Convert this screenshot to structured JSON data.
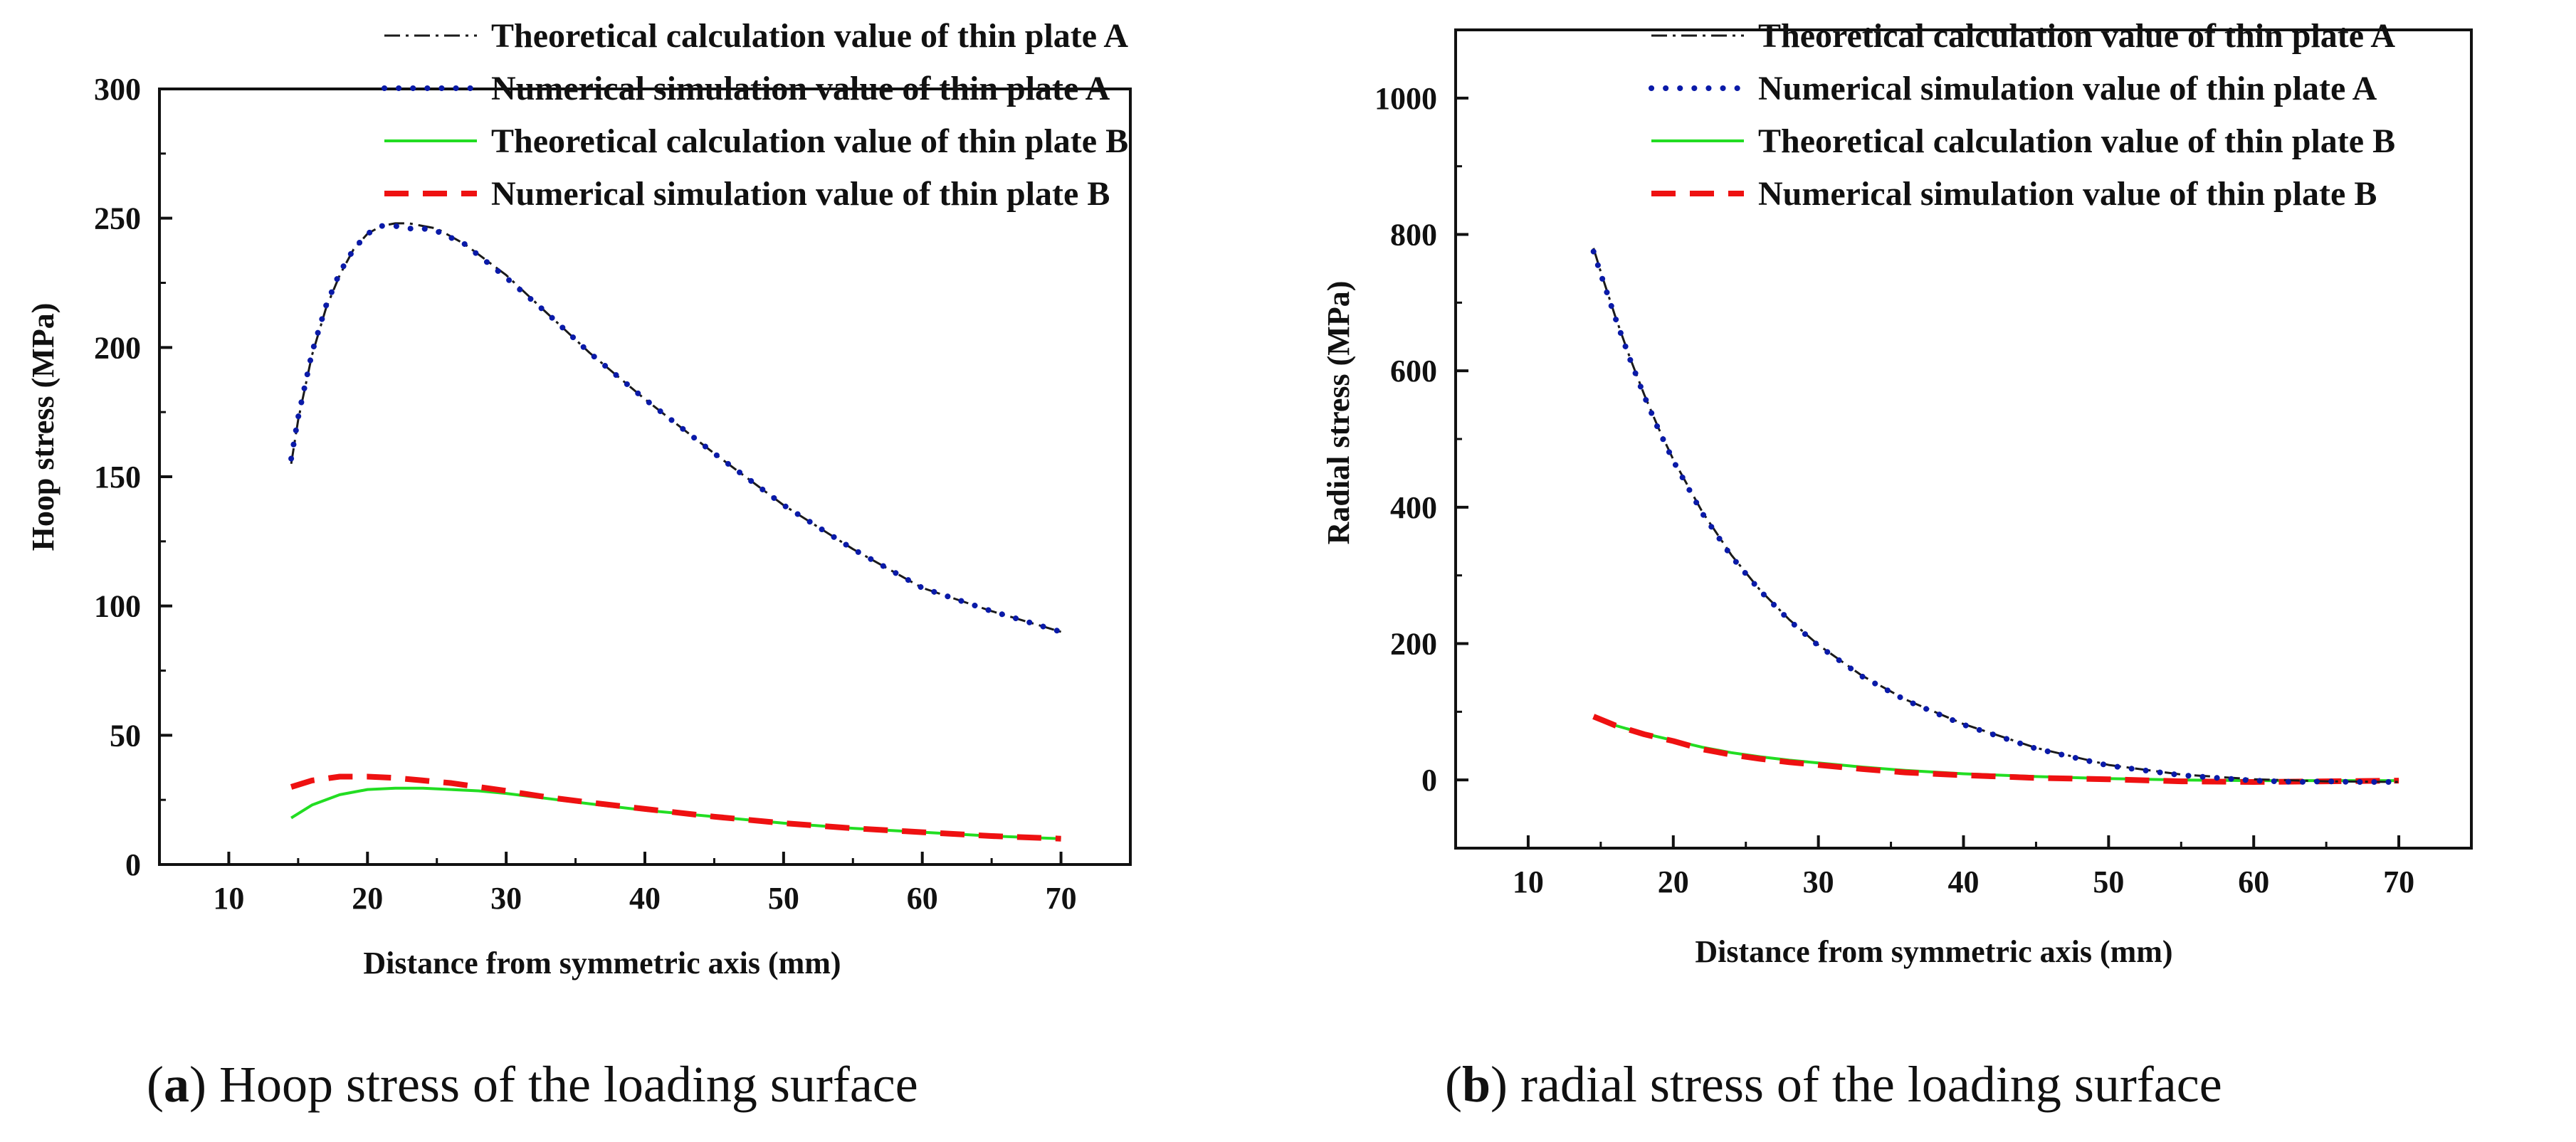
{
  "legend": [
    {
      "label": "Theoretical calculation value of thin plate A",
      "color": "#1a1a1a",
      "style": "dashdot"
    },
    {
      "label": "Numerical simulation value of thin plate A",
      "color": "#0a1aa8",
      "style": "dot"
    },
    {
      "label": "Theoretical calculation value of thin plate B",
      "color": "#22dd22",
      "style": "solid"
    },
    {
      "label": "Numerical simulation value of thin plate B",
      "color": "#ee1111",
      "style": "dash"
    }
  ],
  "captions": [
    {
      "letter": "a",
      "text": " Hoop stress of the loading surface"
    },
    {
      "letter": "b",
      "text": " radial stress of the loading surface"
    }
  ],
  "chart_data": [
    {
      "type": "line",
      "title": "",
      "xlabel": "Distance from symmetric axis  (mm)",
      "ylabel": "Hoop stress (MPa)",
      "xlim": [
        5,
        75
      ],
      "ylim": [
        0,
        300
      ],
      "xticks": [
        10,
        20,
        30,
        40,
        50,
        60,
        70
      ],
      "yticks": [
        0,
        50,
        100,
        150,
        200,
        250,
        300
      ],
      "legend_position": "top-right",
      "series": [
        {
          "name": "Theoretical calculation value of thin plate A",
          "x": [
            14.5,
            15,
            16,
            17,
            18,
            19,
            20,
            21,
            22,
            23,
            24,
            25,
            27,
            30,
            33,
            36,
            40,
            45,
            50,
            55,
            60,
            65,
            70
          ],
          "values": [
            155,
            172,
            197,
            215,
            228,
            238,
            244,
            247,
            248,
            248,
            247,
            246,
            240,
            228,
            213,
            198,
            180,
            159,
            139,
            122,
            107,
            98,
            90
          ]
        },
        {
          "name": "Numerical simulation value of thin plate A",
          "x": [
            14.5,
            15,
            16,
            17,
            18,
            19,
            20,
            21,
            22,
            23,
            24,
            25,
            27,
            30,
            33,
            36,
            40,
            45,
            50,
            55,
            60,
            65,
            70
          ],
          "values": [
            157,
            173,
            198,
            216,
            229,
            238,
            244,
            247,
            247,
            246,
            246,
            245,
            240,
            227,
            213,
            198,
            180,
            159,
            139,
            122,
            107,
            98,
            90
          ]
        },
        {
          "name": "Theoretical calculation value of thin plate B",
          "x": [
            14.5,
            16,
            18,
            20,
            22,
            24,
            26,
            28,
            30,
            33,
            36,
            40,
            45,
            50,
            55,
            60,
            65,
            70
          ],
          "values": [
            18,
            23,
            27,
            29,
            29.5,
            29.5,
            29,
            28.5,
            27.5,
            25.5,
            23.5,
            21,
            18.5,
            16,
            14,
            12.5,
            11,
            10
          ]
        },
        {
          "name": "Numerical simulation value of thin plate B",
          "x": [
            14.5,
            16,
            18,
            20,
            22,
            24,
            26,
            28,
            30,
            33,
            36,
            40,
            45,
            50,
            55,
            60,
            65,
            70
          ],
          "values": [
            30,
            32.5,
            34,
            34,
            33.5,
            32.5,
            31.5,
            30,
            28.5,
            26,
            24,
            21.5,
            18.5,
            16,
            14,
            12.5,
            11,
            10
          ]
        }
      ]
    },
    {
      "type": "line",
      "title": "",
      "xlabel": "Distance from symmetric axis  (mm)",
      "ylabel": "Radial stress (MPa)",
      "xlim": [
        5,
        75
      ],
      "ylim": [
        -100,
        1100
      ],
      "xticks": [
        10,
        20,
        30,
        40,
        50,
        60,
        70
      ],
      "yticks": [
        0,
        200,
        400,
        600,
        800,
        1000
      ],
      "legend_position": "top-right",
      "series": [
        {
          "name": "Theoretical calculation value of thin plate A",
          "x": [
            14.5,
            15,
            16,
            17,
            18,
            19,
            20,
            22,
            24,
            26,
            28,
            30,
            33,
            36,
            40,
            45,
            50,
            55,
            60,
            65,
            70
          ],
          "values": [
            780,
            745,
            680,
            620,
            565,
            515,
            470,
            393,
            330,
            278,
            235,
            198,
            153,
            118,
            82,
            47,
            22,
            8,
            1,
            -2,
            -3
          ]
        },
        {
          "name": "Numerical simulation value of thin plate A",
          "x": [
            14.5,
            15,
            16,
            17,
            18,
            19,
            20,
            22,
            24,
            26,
            28,
            30,
            33,
            36,
            40,
            45,
            50,
            55,
            60,
            63,
            65,
            67,
            70
          ],
          "values": [
            775,
            742,
            678,
            618,
            563,
            513,
            468,
            391,
            328,
            277,
            234,
            197,
            152,
            117,
            81,
            46,
            21,
            7,
            -1,
            -3,
            -2,
            -3,
            -3
          ]
        },
        {
          "name": "Theoretical calculation value of thin plate B",
          "x": [
            14.5,
            16,
            18,
            20,
            22,
            24,
            26,
            28,
            30,
            33,
            36,
            40,
            45,
            50,
            55,
            60,
            65,
            70
          ],
          "values": [
            92,
            80,
            68,
            58,
            48,
            40,
            34,
            29,
            25,
            19,
            14,
            9,
            5,
            2,
            0,
            -1,
            -1,
            -1
          ]
        },
        {
          "name": "Numerical simulation value of thin plate B",
          "x": [
            14.5,
            16,
            18,
            20,
            22,
            24,
            26,
            28,
            30,
            33,
            36,
            40,
            45,
            50,
            55,
            60,
            65,
            70
          ],
          "values": [
            93,
            80,
            67,
            57,
            45,
            37,
            31,
            26,
            22,
            16,
            11,
            7,
            3,
            1,
            -2,
            -3,
            -2,
            -1
          ]
        }
      ]
    }
  ]
}
